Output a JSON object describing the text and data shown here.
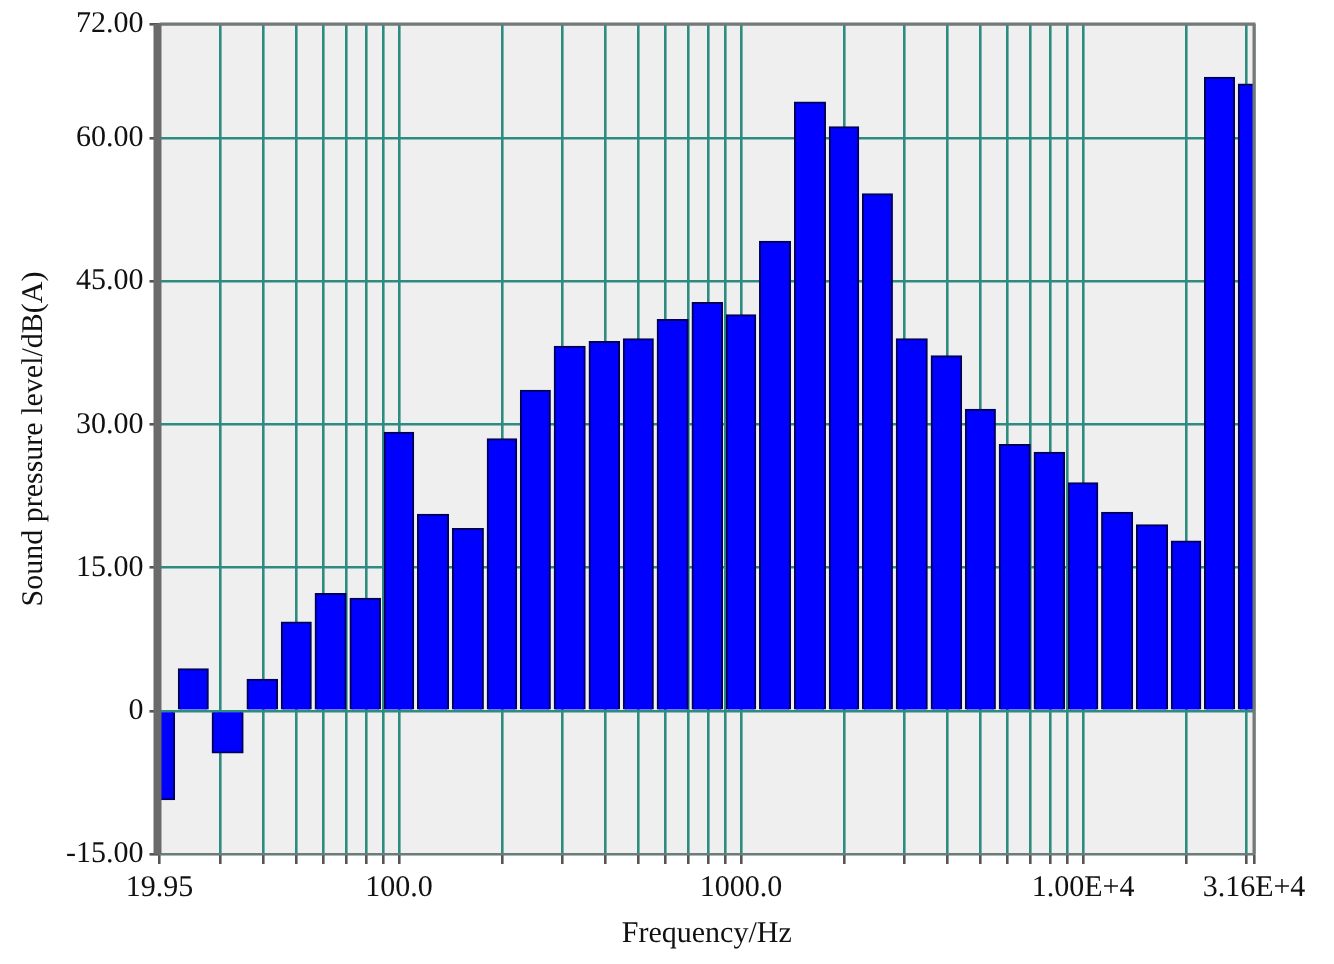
{
  "chart_data": {
    "type": "bar",
    "xlabel": "Frequency/Hz",
    "ylabel": "Sound pressure level/dB(A)",
    "x": [
      20,
      25,
      31.5,
      40,
      50,
      63,
      80,
      100,
      125,
      160,
      200,
      250,
      315,
      400,
      500,
      630,
      800,
      1000,
      1250,
      1600,
      2000,
      2500,
      3150,
      4000,
      5000,
      6300,
      8000,
      10000,
      12500,
      16000,
      20000,
      25000,
      31500
    ],
    "values": [
      -9.3,
      4.4,
      -4.4,
      3.3,
      9.3,
      12.3,
      11.8,
      29.2,
      20.6,
      19.1,
      28.5,
      33.6,
      38.2,
      38.7,
      39.0,
      41.0,
      42.8,
      41.5,
      49.2,
      63.8,
      61.2,
      54.2,
      39.0,
      37.2,
      31.6,
      27.9,
      27.1,
      23.9,
      20.8,
      19.5,
      17.8,
      66.4,
      65.7
    ],
    "color": "#0000ff",
    "log": "x",
    "xlim": [
      19.95,
      31600
    ],
    "xticks": [
      {
        "value": 19.95,
        "label": "19.95"
      },
      {
        "value": 30,
        "label": null
      },
      {
        "value": 40,
        "label": null
      },
      {
        "value": 50,
        "label": null
      },
      {
        "value": 60,
        "label": null
      },
      {
        "value": 70,
        "label": null
      },
      {
        "value": 80,
        "label": null
      },
      {
        "value": 90,
        "label": null
      },
      {
        "value": 100,
        "label": "100.0"
      },
      {
        "value": 200,
        "label": null
      },
      {
        "value": 300,
        "label": null
      },
      {
        "value": 400,
        "label": null
      },
      {
        "value": 500,
        "label": null
      },
      {
        "value": 600,
        "label": null
      },
      {
        "value": 700,
        "label": null
      },
      {
        "value": 800,
        "label": null
      },
      {
        "value": 900,
        "label": null
      },
      {
        "value": 1000,
        "label": "1000.0"
      },
      {
        "value": 2000,
        "label": null
      },
      {
        "value": 3000,
        "label": null
      },
      {
        "value": 4000,
        "label": null
      },
      {
        "value": 5000,
        "label": null
      },
      {
        "value": 6000,
        "label": null
      },
      {
        "value": 7000,
        "label": null
      },
      {
        "value": 8000,
        "label": null
      },
      {
        "value": 9000,
        "label": null
      },
      {
        "value": 10000,
        "label": "1.00E+4"
      },
      {
        "value": 20000,
        "label": null
      },
      {
        "value": 30000,
        "label": null
      },
      {
        "value": 31600,
        "label": "3.16E+4"
      }
    ],
    "ylim": [
      -15,
      72
    ],
    "yticks": [
      {
        "value": -15,
        "label": "-15.00"
      },
      {
        "value": 0,
        "label": "0"
      },
      {
        "value": 15,
        "label": "15.00"
      },
      {
        "value": 30,
        "label": "30.00"
      },
      {
        "value": 45,
        "label": "45.00"
      },
      {
        "value": 60,
        "label": "60.00"
      },
      {
        "value": 72,
        "label": "72.00"
      }
    ],
    "grid": true,
    "legend": false
  }
}
